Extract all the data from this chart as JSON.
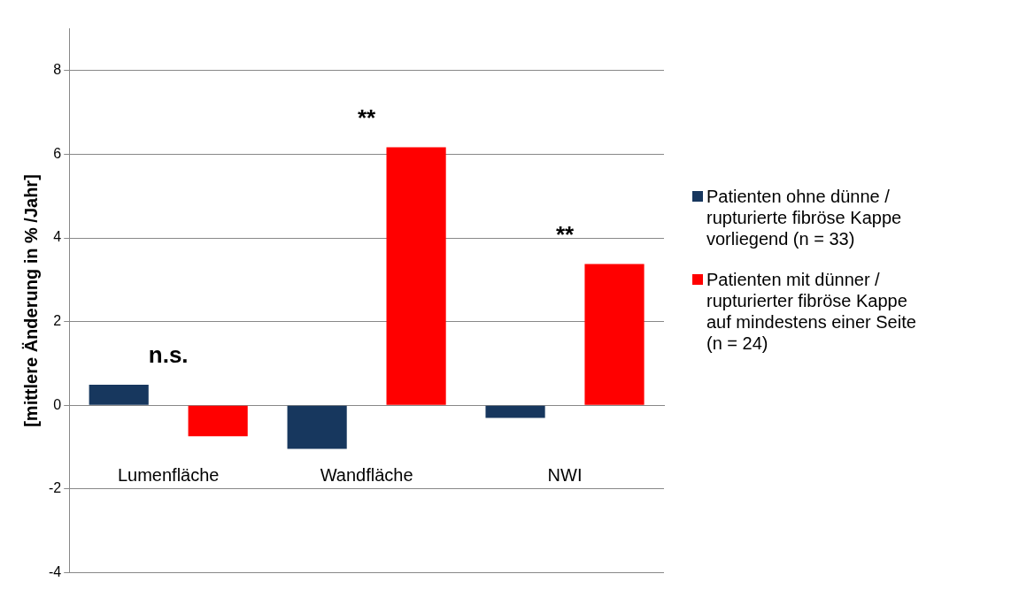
{
  "chart_data": {
    "type": "bar",
    "ylabel": "[mittlere Änderung in % /Jahr]",
    "categories": [
      "Lumenfläche",
      "Wandfläche",
      "NWI"
    ],
    "series": [
      {
        "name": "Patienten ohne dünne / rupturierte fibröse Kappe vorliegend (n = 33)",
        "color": "#17375e",
        "values": [
          0.49,
          -1.04,
          -0.3
        ]
      },
      {
        "name": "Patienten mit dünner / rupturierter fibröse Kappe auf mindestens einer Seite (n = 24)",
        "color": "#ff0000",
        "values": [
          -0.74,
          6.17,
          3.38
        ]
      }
    ],
    "ylim": [
      -4,
      9
    ],
    "yticks": [
      -4,
      -2,
      0,
      2,
      4,
      6,
      8
    ],
    "grid": "y",
    "legend": "right",
    "annotations": [
      "n.s.",
      "**",
      "**"
    ]
  }
}
